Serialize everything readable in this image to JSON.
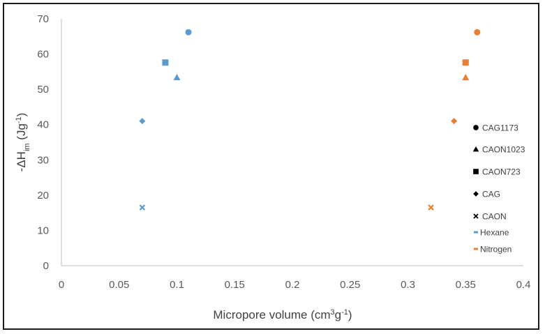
{
  "chart_data": {
    "type": "scatter",
    "title": "",
    "xlabel": "Micropore volume (cm3g-1)",
    "xlabel_parts": {
      "base": "Micropore volume (cm",
      "sup1": "3",
      "mid": "g",
      "sup2": "-1",
      "end": ")"
    },
    "ylabel": "-ΔHim (Jg-1)",
    "ylabel_parts": {
      "base": "-ΔH",
      "sub": "im",
      "mid": " (Jg",
      "sup": "-1",
      "end": ")"
    },
    "xlim": [
      0,
      0.4
    ],
    "ylim": [
      0,
      70
    ],
    "x_ticks": [
      "0",
      "0.05",
      "0.1",
      "0.15",
      "0.2",
      "0.25",
      "0.3",
      "0.35",
      "0.4"
    ],
    "y_ticks": [
      "0",
      "10",
      "20",
      "30",
      "40",
      "50",
      "60",
      "70"
    ],
    "grid": false,
    "legend_position": "right-inside",
    "series": [
      {
        "name": "Hexane",
        "color": "#5b9bd5",
        "points": [
          {
            "sample": "CAG1173",
            "marker": "circle",
            "x": 0.11,
            "y": 66.2
          },
          {
            "sample": "CAON723",
            "marker": "square",
            "x": 0.09,
            "y": 57.6
          },
          {
            "sample": "CAON1023",
            "marker": "triangle",
            "x": 0.1,
            "y": 53.4
          },
          {
            "sample": "CAG",
            "marker": "diamond",
            "x": 0.07,
            "y": 41.0
          },
          {
            "sample": "CAON",
            "marker": "x",
            "x": 0.07,
            "y": 16.5
          }
        ]
      },
      {
        "name": "Nitrogen",
        "color": "#ed7d31",
        "points": [
          {
            "sample": "CAG1173",
            "marker": "circle",
            "x": 0.36,
            "y": 66.2
          },
          {
            "sample": "CAON723",
            "marker": "square",
            "x": 0.35,
            "y": 57.6
          },
          {
            "sample": "CAON1023",
            "marker": "triangle",
            "x": 0.35,
            "y": 53.4
          },
          {
            "sample": "CAG",
            "marker": "diamond",
            "x": 0.34,
            "y": 41.0
          },
          {
            "sample": "CAON",
            "marker": "x",
            "x": 0.32,
            "y": 16.5
          }
        ]
      }
    ],
    "legend": [
      {
        "label": "CAG1173",
        "marker": "circle",
        "color": "#000000"
      },
      {
        "label": "CAON1023",
        "marker": "triangle",
        "color": "#000000"
      },
      {
        "label": "CAON723",
        "marker": "square",
        "color": "#000000"
      },
      {
        "label": "CAG",
        "marker": "diamond",
        "color": "#000000"
      },
      {
        "label": "CAON",
        "marker": "x",
        "color": "#000000"
      },
      {
        "label": "Hexane",
        "marker": "dash",
        "color": "#5b9bd5"
      },
      {
        "label": "Nitrogen",
        "marker": "dash",
        "color": "#ed7d31"
      }
    ]
  }
}
